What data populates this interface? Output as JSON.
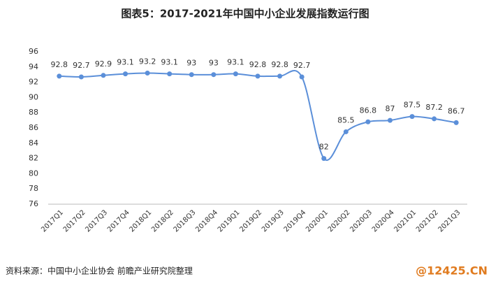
{
  "chart_data": {
    "type": "line",
    "title": "图表5：2017-2021年中国中小企业发展指数运行图",
    "source": "资料来源：中国中小企业协会 前瞻产业研究院整理",
    "watermark": "@12425.CN",
    "categories": [
      "2017Q1",
      "2017Q2",
      "2017Q3",
      "2017Q4",
      "2018Q1",
      "2018Q2",
      "2018Q3",
      "2018Q4",
      "2019Q1",
      "2019Q2",
      "2019Q3",
      "2019Q4",
      "2020Q1",
      "2020Q2",
      "2020Q3",
      "2020Q4",
      "2021Q1",
      "2021Q2",
      "2021Q3"
    ],
    "values": [
      92.8,
      92.7,
      92.9,
      93.1,
      93.2,
      93.1,
      93,
      93,
      93.1,
      92.8,
      92.8,
      92.7,
      82,
      85.5,
      86.8,
      87,
      87.5,
      87.2,
      86.7
    ],
    "color": "#5b8fd9",
    "ylim": [
      76,
      96
    ],
    "yticks": [
      76,
      78,
      80,
      82,
      84,
      86,
      88,
      90,
      92,
      94,
      96
    ],
    "grid": false
  }
}
